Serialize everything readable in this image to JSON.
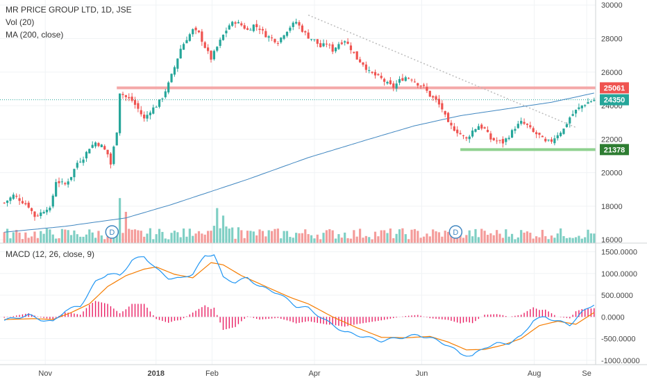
{
  "legend": {
    "symbol": "MR PRICE GROUP LTD, 1D, JSE",
    "volume": "Vol (20)",
    "ma": "MA (200, close)"
  },
  "macd_legend": "MACD (12, 26, close, 9)",
  "colors": {
    "up": "#26a69a",
    "down": "#ef5350",
    "vol_up": "#7fcfc4",
    "vol_down": "#f49c9a",
    "ma": "#3f86c0",
    "macd_line": "#2196f3",
    "signal_line": "#f57c00",
    "histogram": "#e91e63",
    "resistance": "#f4a8a8",
    "support": "#8fd18f",
    "trendline": "#bbbbbb",
    "tag_resistance": "#ef5350",
    "tag_last": "#26a69a",
    "tag_support": "#2e7d32"
  },
  "x_axis": {
    "labels": [
      {
        "text": "Nov",
        "bold": false,
        "frac": 0.076
      },
      {
        "text": "2018",
        "bold": true,
        "frac": 0.262
      },
      {
        "text": "Feb",
        "bold": false,
        "frac": 0.356
      },
      {
        "text": "Apr",
        "bold": false,
        "frac": 0.528
      },
      {
        "text": "Jun",
        "bold": false,
        "frac": 0.708
      },
      {
        "text": "Aug",
        "bold": false,
        "frac": 0.897
      },
      {
        "text": "Se",
        "bold": false,
        "frac": 0.985
      }
    ]
  },
  "dividend_markers": [
    {
      "label": "D",
      "frac": 0.188
    },
    {
      "label": "D",
      "frac": 0.765
    }
  ],
  "chart_data": [
    {
      "type": "candlestick",
      "title": "MR PRICE GROUP LTD, 1D, JSE",
      "y_ticks": [
        16000,
        18000,
        20000,
        22000,
        24000,
        26000,
        28000,
        30000
      ],
      "y_tick_labels": [
        "16000",
        "18000",
        "20000",
        "22000",
        "24000",
        "26000",
        "28000",
        "30000"
      ],
      "ylim": [
        15800,
        30300
      ],
      "price_path": [
        [
          0,
          18200
        ],
        [
          3,
          18650
        ],
        [
          5,
          18400
        ],
        [
          8,
          18000
        ],
        [
          10,
          17400
        ],
        [
          12,
          17600
        ],
        [
          14,
          17900
        ],
        [
          15,
          17800
        ],
        [
          17,
          19500
        ],
        [
          20,
          19300
        ],
        [
          22,
          19800
        ],
        [
          24,
          20600
        ],
        [
          26,
          20900
        ],
        [
          28,
          21500
        ],
        [
          30,
          21800
        ],
        [
          32,
          21600
        ],
        [
          34,
          21100
        ],
        [
          35,
          20500
        ],
        [
          37,
          22500
        ],
        [
          38,
          24800
        ],
        [
          40,
          24500
        ],
        [
          42,
          24300
        ],
        [
          44,
          23800
        ],
        [
          46,
          23200
        ],
        [
          48,
          23700
        ],
        [
          50,
          24000
        ],
        [
          52,
          24500
        ],
        [
          54,
          25300
        ],
        [
          56,
          26300
        ],
        [
          58,
          27400
        ],
        [
          60,
          28000
        ],
        [
          62,
          28500
        ],
        [
          64,
          28300
        ],
        [
          66,
          27500
        ],
        [
          68,
          26800
        ],
        [
          70,
          27500
        ],
        [
          72,
          28200
        ],
        [
          74,
          28800
        ],
        [
          76,
          29000
        ],
        [
          78,
          28800
        ],
        [
          80,
          28500
        ],
        [
          82,
          28800
        ],
        [
          84,
          28600
        ],
        [
          86,
          28200
        ],
        [
          88,
          28000
        ],
        [
          90,
          27800
        ],
        [
          92,
          28300
        ],
        [
          94,
          28700
        ],
        [
          96,
          29000
        ],
        [
          98,
          28500
        ],
        [
          100,
          28100
        ],
        [
          102,
          27900
        ],
        [
          104,
          27500
        ],
        [
          106,
          27700
        ],
        [
          108,
          27300
        ],
        [
          110,
          27700
        ],
        [
          112,
          27900
        ],
        [
          114,
          27400
        ],
        [
          116,
          26800
        ],
        [
          118,
          26500
        ],
        [
          120,
          26000
        ],
        [
          122,
          25800
        ],
        [
          124,
          25600
        ],
        [
          126,
          25300
        ],
        [
          128,
          25100
        ],
        [
          130,
          25500
        ],
        [
          132,
          25700
        ],
        [
          134,
          25600
        ],
        [
          136,
          25300
        ],
        [
          138,
          25100
        ],
        [
          140,
          24600
        ],
        [
          142,
          24300
        ],
        [
          144,
          23800
        ],
        [
          146,
          22900
        ],
        [
          148,
          22600
        ],
        [
          150,
          22300
        ],
        [
          152,
          22000
        ],
        [
          154,
          22500
        ],
        [
          156,
          22800
        ],
        [
          158,
          22600
        ],
        [
          160,
          22000
        ],
        [
          162,
          21900
        ],
        [
          164,
          21800
        ],
        [
          166,
          22200
        ],
        [
          168,
          22700
        ],
        [
          170,
          23000
        ],
        [
          172,
          22800
        ],
        [
          174,
          22400
        ],
        [
          176,
          22200
        ],
        [
          178,
          21800
        ],
        [
          180,
          21900
        ],
        [
          182,
          22300
        ],
        [
          184,
          22600
        ],
        [
          186,
          23300
        ],
        [
          188,
          23700
        ],
        [
          190,
          24000
        ],
        [
          192,
          24200
        ],
        [
          194,
          24350
        ]
      ],
      "ma200": [
        [
          0,
          16450
        ],
        [
          20,
          16800
        ],
        [
          40,
          17300
        ],
        [
          55,
          18100
        ],
        [
          65,
          18700
        ],
        [
          80,
          19600
        ],
        [
          100,
          20900
        ],
        [
          120,
          22000
        ],
        [
          135,
          22800
        ],
        [
          150,
          23400
        ],
        [
          165,
          23800
        ],
        [
          180,
          24200
        ],
        [
          194,
          24750
        ]
      ],
      "volume": {
        "ylim": [
          0,
          5000
        ],
        "spikes": [
          {
            "i": 38,
            "value": 3600
          },
          {
            "i": 40,
            "value": 2500
          },
          {
            "i": 70,
            "value": 2800
          },
          {
            "i": 72,
            "value": 2200
          }
        ]
      },
      "levels": [
        {
          "name": "resistance",
          "value": 25061,
          "label": "25061",
          "from": 37,
          "to": 194
        },
        {
          "name": "support",
          "value": 21378,
          "label": "21378",
          "from": 150,
          "to": 194
        },
        {
          "name": "last",
          "value": 24350,
          "label": "24350",
          "from": 0,
          "to": 194
        }
      ],
      "trendline": {
        "from": [
          100,
          29400
        ],
        "to": [
          188,
          22700
        ]
      }
    },
    {
      "type": "line",
      "title": "MACD (12, 26, close, 9)",
      "y_ticks": [
        -1000,
        -500,
        0,
        500,
        1000,
        1500
      ],
      "y_tick_labels": [
        "-1000.0000",
        "-500.0000",
        "0.0000",
        "500.0000",
        "1000.0000",
        "1500.0000"
      ],
      "ylim": [
        -1100,
        1700
      ],
      "series": [
        {
          "name": "MACD",
          "points": [
            [
              0,
              -80
            ],
            [
              8,
              40
            ],
            [
              12,
              -60
            ],
            [
              16,
              -120
            ],
            [
              20,
              150
            ],
            [
              25,
              250
            ],
            [
              30,
              800
            ],
            [
              34,
              1000
            ],
            [
              38,
              950
            ],
            [
              42,
              1300
            ],
            [
              46,
              1400
            ],
            [
              50,
              1100
            ],
            [
              54,
              900
            ],
            [
              58,
              880
            ],
            [
              62,
              1000
            ],
            [
              66,
              1400
            ],
            [
              69,
              1450
            ],
            [
              72,
              900
            ],
            [
              76,
              800
            ],
            [
              80,
              900
            ],
            [
              84,
              700
            ],
            [
              90,
              550
            ],
            [
              96,
              250
            ],
            [
              100,
              200
            ],
            [
              106,
              -100
            ],
            [
              112,
              -350
            ],
            [
              118,
              -450
            ],
            [
              124,
              -550
            ],
            [
              130,
              -480
            ],
            [
              136,
              -420
            ],
            [
              140,
              -480
            ],
            [
              146,
              -650
            ],
            [
              150,
              -850
            ],
            [
              154,
              -900
            ],
            [
              158,
              -700
            ],
            [
              162,
              -620
            ],
            [
              166,
              -600
            ],
            [
              170,
              -450
            ],
            [
              174,
              -80
            ],
            [
              178,
              0
            ],
            [
              182,
              -100
            ],
            [
              186,
              -180
            ],
            [
              190,
              100
            ],
            [
              194,
              300
            ]
          ]
        },
        {
          "name": "Signal",
          "points": [
            [
              0,
              -60
            ],
            [
              10,
              -40
            ],
            [
              16,
              -60
            ],
            [
              22,
              100
            ],
            [
              28,
              300
            ],
            [
              34,
              700
            ],
            [
              40,
              950
            ],
            [
              46,
              1100
            ],
            [
              50,
              1150
            ],
            [
              56,
              980
            ],
            [
              62,
              900
            ],
            [
              68,
              1250
            ],
            [
              72,
              1200
            ],
            [
              78,
              950
            ],
            [
              86,
              700
            ],
            [
              94,
              450
            ],
            [
              100,
              300
            ],
            [
              108,
              0
            ],
            [
              116,
              -250
            ],
            [
              124,
              -470
            ],
            [
              132,
              -480
            ],
            [
              140,
              -450
            ],
            [
              146,
              -580
            ],
            [
              152,
              -760
            ],
            [
              158,
              -750
            ],
            [
              164,
              -650
            ],
            [
              170,
              -500
            ],
            [
              176,
              -200
            ],
            [
              182,
              -100
            ],
            [
              188,
              -170
            ],
            [
              194,
              100
            ]
          ]
        }
      ]
    }
  ]
}
